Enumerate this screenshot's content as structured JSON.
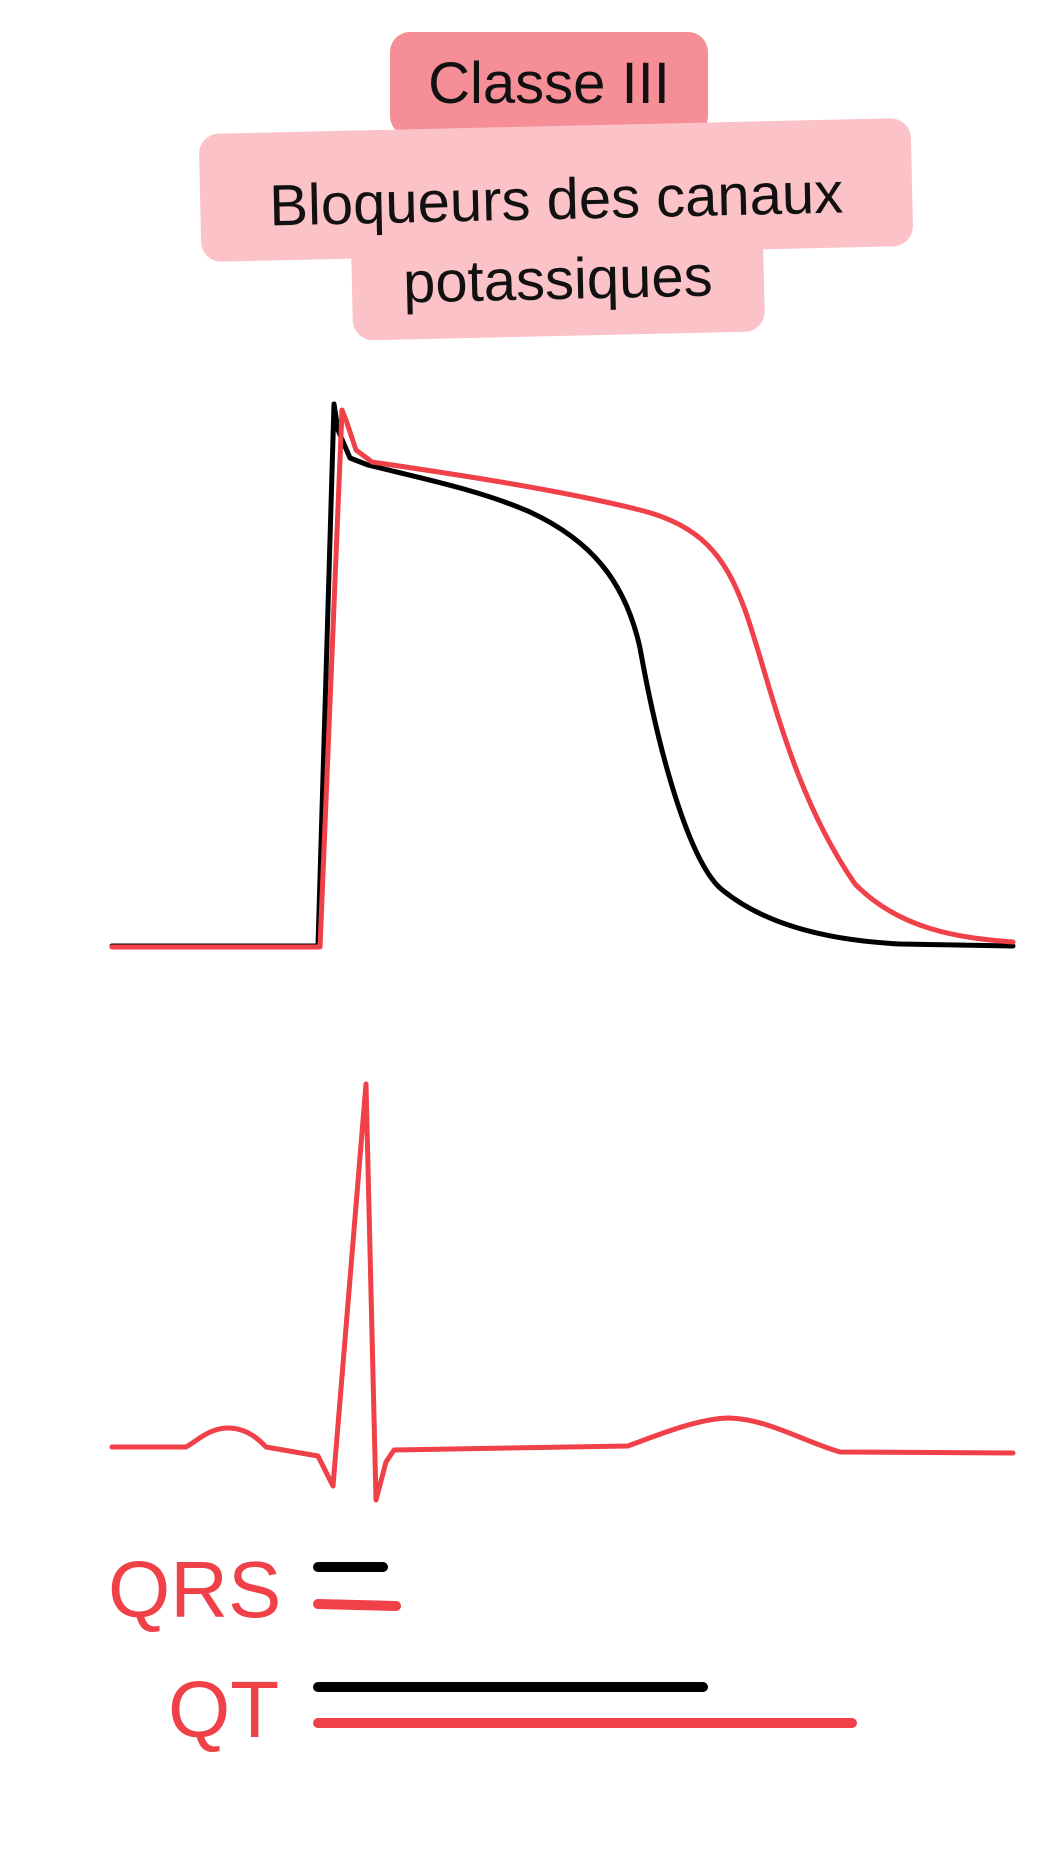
{
  "header": {
    "class_label": "Classe III",
    "title_line1": "Bloqueurs des canaux",
    "title_line2": "potassiques"
  },
  "legend": {
    "qrs_label": "QRS",
    "qt_label": "QT"
  },
  "colors": {
    "baseline_trace": "#000000",
    "drug_trace": "#f04048",
    "class_pill": "#f58e96",
    "title_pill": "#fbc2c7",
    "label_text": "#f04048"
  }
}
